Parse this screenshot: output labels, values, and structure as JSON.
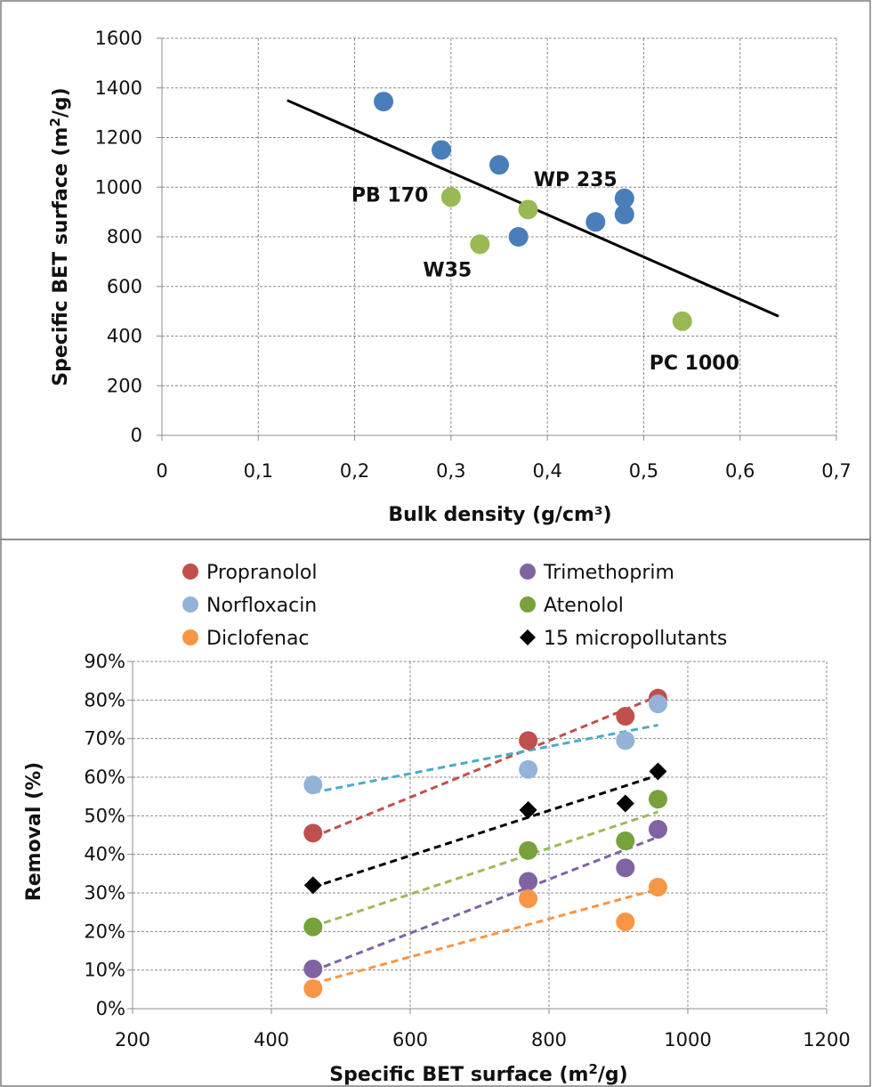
{
  "chart_data": [
    {
      "type": "scatter",
      "xlabel": "Bulk density (g/cm³)",
      "ylabel_text": "Specific BET surface (m",
      "ylabel_sup": "2",
      "ylabel_tail": "/g)",
      "xlim": [
        0,
        0.7
      ],
      "ylim": [
        0,
        1600
      ],
      "xticks": [
        "0",
        "0,1",
        "0,2",
        "0,3",
        "0,4",
        "0,5",
        "0,6",
        "0,7"
      ],
      "yticks": [
        "0",
        "200",
        "400",
        "600",
        "800",
        "1000",
        "1200",
        "1400",
        "1600"
      ],
      "grid": true,
      "colors": {
        "blue": "#4a7ebb",
        "green": "#98b954",
        "trend": "#000000"
      },
      "series": [
        {
          "color": "#4a7ebb",
          "points": [
            [
              0.23,
              1345
            ],
            [
              0.29,
              1150
            ],
            [
              0.35,
              1090
            ],
            [
              0.37,
              800
            ],
            [
              0.45,
              860
            ],
            [
              0.48,
              955
            ],
            [
              0.48,
              890
            ]
          ]
        },
        {
          "color": "#98b954",
          "points": [
            [
              0.3,
              960
            ],
            [
              0.33,
              770
            ],
            [
              0.38,
              910
            ],
            [
              0.54,
              460
            ]
          ]
        }
      ],
      "trendline": [
        [
          0.13,
          1350
        ],
        [
          0.64,
          480
        ]
      ],
      "annotations": [
        {
          "text": "WP 235",
          "x": 0.48,
          "y": 955
        },
        {
          "text": "PB 170",
          "x": 0.3,
          "y": 960
        },
        {
          "text": "W35",
          "x": 0.33,
          "y": 770
        },
        {
          "text": "PC 1000",
          "x": 0.54,
          "y": 460
        }
      ]
    },
    {
      "type": "scatter",
      "xlabel_text": "Specific BET surface (m",
      "xlabel_sup": "2",
      "xlabel_tail": "/g)",
      "ylabel": "Removal (%)",
      "xlim": [
        200,
        1200
      ],
      "ylim": [
        0,
        90
      ],
      "xticks": [
        "200",
        "400",
        "600",
        "800",
        "1000",
        "1200"
      ],
      "yticks": [
        "0%",
        "10%",
        "20%",
        "30%",
        "40%",
        "50%",
        "60%",
        "70%",
        "80%",
        "90%"
      ],
      "grid": true,
      "legend": "top",
      "series": [
        {
          "name": "Propranolol",
          "color": "#c0504d",
          "trend_color": "#c0504d",
          "marker": "circle",
          "x": [
            460,
            770,
            910,
            957
          ],
          "y": [
            45.5,
            69.5,
            75.8,
            80.5
          ],
          "trend": [
            [
              460,
              44.5
            ],
            [
              957,
              81
            ]
          ]
        },
        {
          "name": "Trimethoprim",
          "color": "#8064a2",
          "trend_color": "#8064a2",
          "marker": "circle",
          "x": [
            460,
            770,
            910,
            957
          ],
          "y": [
            10.3,
            33,
            36.5,
            46.5
          ],
          "trend": [
            [
              460,
              9.8
            ],
            [
              957,
              44.5
            ]
          ]
        },
        {
          "name": "Norfloxacin",
          "color": "#95b3d7",
          "trend_color": "#4bacc6",
          "marker": "circle",
          "x": [
            460,
            770,
            910,
            957
          ],
          "y": [
            58,
            62,
            69.5,
            79
          ],
          "trend": [
            [
              460,
              56
            ],
            [
              957,
              73.5
            ]
          ]
        },
        {
          "name": "Atenolol",
          "color": "#77a13b",
          "trend_color": "#9bbb59",
          "marker": "circle",
          "x": [
            460,
            770,
            910,
            957
          ],
          "y": [
            21.2,
            41,
            43.5,
            54.3
          ],
          "trend": [
            [
              460,
              21.3
            ],
            [
              957,
              51
            ]
          ]
        },
        {
          "name": "Diclofenac",
          "color": "#f79646",
          "trend_color": "#f79646",
          "marker": "circle",
          "x": [
            460,
            770,
            910,
            957
          ],
          "y": [
            5.2,
            28.5,
            22.5,
            31.5
          ],
          "trend": [
            [
              460,
              6.5
            ],
            [
              957,
              31
            ]
          ]
        },
        {
          "name": "15 micropollutants",
          "color": "#000000",
          "trend_color": "#000000",
          "marker": "diamond",
          "x": [
            460,
            770,
            910,
            957
          ],
          "y": [
            32,
            51.5,
            53.2,
            61.5
          ],
          "trend": [
            [
              460,
              31.5
            ],
            [
              957,
              60.5
            ]
          ]
        }
      ]
    }
  ]
}
